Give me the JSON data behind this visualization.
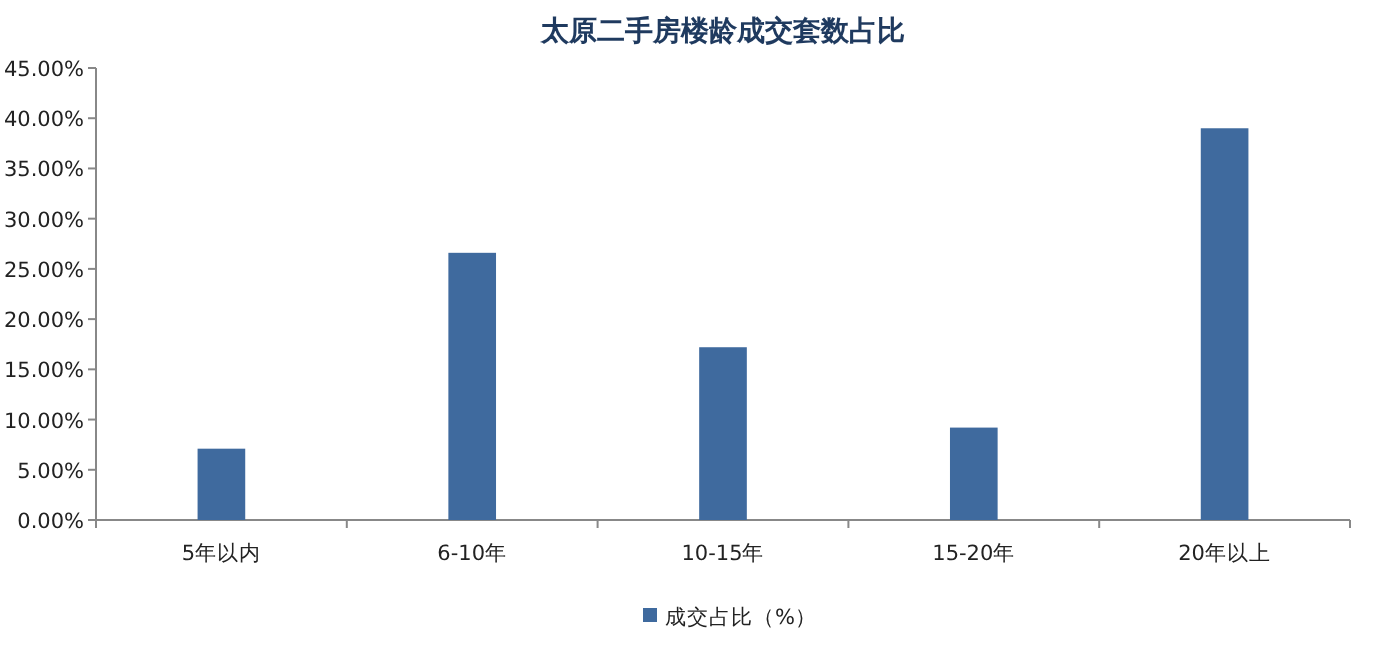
{
  "chart_data": {
    "type": "bar",
    "title": "太原二手房楼龄成交套数占比",
    "categories": [
      "5年以内",
      "6-10年",
      "10-15年",
      "15-20年",
      "20年以上"
    ],
    "series": [
      {
        "name": "成交占比（%）",
        "color": "#3f6a9e",
        "values": [
          7.1,
          26.6,
          17.2,
          9.2,
          39.0
        ]
      }
    ],
    "ylim": [
      0,
      45
    ],
    "yticks": [
      {
        "value": 0,
        "label": "0.00%"
      },
      {
        "value": 5,
        "label": "5.00%"
      },
      {
        "value": 10,
        "label": "10.00%"
      },
      {
        "value": 15,
        "label": "15.00%"
      },
      {
        "value": 20,
        "label": "20.00%"
      },
      {
        "value": 25,
        "label": "25.00%"
      },
      {
        "value": 30,
        "label": "30.00%"
      },
      {
        "value": 35,
        "label": "35.00%"
      },
      {
        "value": 40,
        "label": "40.00%"
      },
      {
        "value": 45,
        "label": "45.00%"
      }
    ],
    "grid": false,
    "legend": "bottom"
  }
}
